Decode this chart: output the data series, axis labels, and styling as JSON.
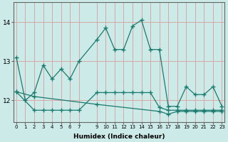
{
  "line1_x": [
    0,
    1,
    2,
    3,
    4,
    5,
    6,
    7,
    9,
    10,
    11,
    12,
    13,
    14,
    15,
    16,
    17,
    18,
    19,
    20,
    21,
    22,
    23
  ],
  "line1_y": [
    13.1,
    12.0,
    12.2,
    12.9,
    12.55,
    12.8,
    12.55,
    13.0,
    13.55,
    13.85,
    13.3,
    13.3,
    13.9,
    14.05,
    13.3,
    13.3,
    11.85,
    11.85,
    12.35,
    12.15,
    12.15,
    12.35,
    11.85
  ],
  "line2_x": [
    0,
    2,
    3,
    4,
    5,
    6,
    7,
    9,
    10,
    11,
    12,
    13,
    14,
    15,
    16,
    17,
    18,
    19,
    20,
    21,
    22,
    23
  ],
  "line2_y": [
    12.22,
    11.75,
    11.75,
    11.75,
    11.75,
    11.75,
    11.75,
    12.2,
    12.2,
    12.2,
    12.2,
    12.2,
    12.2,
    12.2,
    11.82,
    11.75,
    11.75,
    11.75,
    11.75,
    11.75,
    11.75,
    11.75
  ],
  "line3_x": [
    0,
    2,
    9,
    16,
    17,
    18,
    19,
    20,
    21,
    22,
    23
  ],
  "line3_y": [
    12.22,
    12.1,
    11.9,
    11.72,
    11.65,
    11.72,
    11.72,
    11.72,
    11.72,
    11.72,
    11.72
  ],
  "bg_color": "#cceae7",
  "line_color": "#1a7a6e",
  "grid_color": "#d8a8a8",
  "xlabel": "Humidex (Indice chaleur)",
  "xtick_positions": [
    0,
    1,
    2,
    3,
    4,
    5,
    6,
    7,
    9,
    10,
    11,
    12,
    13,
    14,
    15,
    16,
    17,
    18,
    19,
    20,
    21,
    22,
    23
  ],
  "xtick_labels": [
    "0",
    "1",
    "2",
    "3",
    "4",
    "5",
    "6",
    "7",
    "9",
    "10",
    "11",
    "12",
    "13",
    "14",
    "15",
    "16",
    "17",
    "18",
    "19",
    "20",
    "21",
    "22",
    "23"
  ],
  "yticks": [
    12,
    13,
    14
  ],
  "xlim": [
    -0.3,
    23.3
  ],
  "ylim": [
    11.45,
    14.5
  ]
}
